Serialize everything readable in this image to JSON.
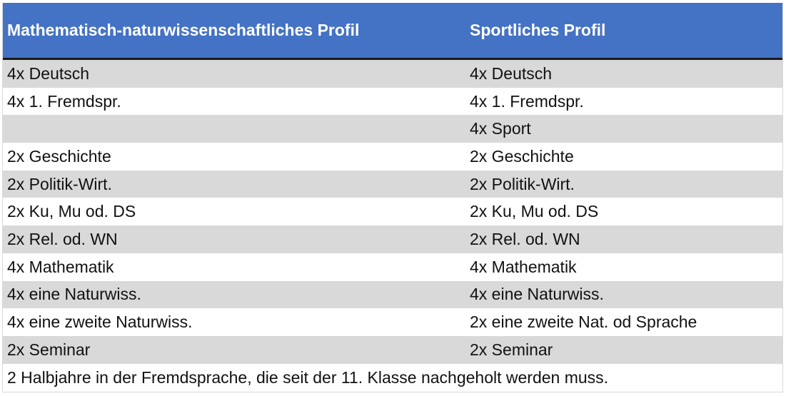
{
  "header": {
    "col1": "Mathematisch-naturwissenschaftliches Profil",
    "col2": "Sportliches Profil"
  },
  "rows": [
    {
      "col1": "4x Deutsch",
      "col2": "4x Deutsch"
    },
    {
      "col1": "4x 1. Fremdspr.",
      "col2": "4x 1. Fremdspr."
    },
    {
      "col1": "",
      "col2": "4x Sport"
    },
    {
      "col1": "2x Geschichte",
      "col2": "2x Geschichte"
    },
    {
      "col1": "2x Politik-Wirt.",
      "col2": "2x Politik-Wirt."
    },
    {
      "col1": "2x Ku, Mu od. DS",
      "col2": "2x Ku, Mu od. DS"
    },
    {
      "col1": "2x Rel. od. WN",
      "col2": "2x Rel. od. WN"
    },
    {
      "col1": "4x Mathematik",
      "col2": "4x Mathematik"
    },
    {
      "col1": "4x eine Naturwiss.",
      "col2": "4x eine Naturwiss."
    },
    {
      "col1": "4x eine zweite Naturwiss.",
      "col2": "2x eine zweite Nat. od Sprache"
    },
    {
      "col1": "2x Seminar",
      "col2": "2x Seminar"
    }
  ],
  "footer": "2 Halbjahre in der Fremdsprache, die seit der 11. Klasse nachgeholt werden muss.",
  "colors": {
    "header_bg": "#4472c4",
    "shade": "#d9d9d9"
  }
}
